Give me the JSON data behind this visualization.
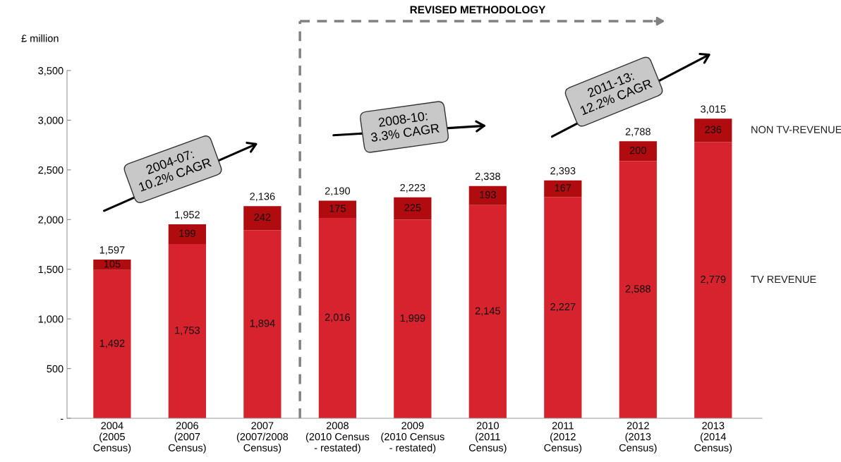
{
  "chart_data": {
    "type": "bar",
    "stacked": true,
    "ylabel": "£ million",
    "categories": [
      "2004\n(2005\nCensus)",
      "2006\n(2007\nCensus)",
      "2007\n(2007/2008\nCensus)",
      "2008\n(2010 Census\n- restated)",
      "2009\n(2010 Census\n- restated)",
      "2010\n(2011\nCensus)",
      "2011\n(2012\nCensus)",
      "2012\n(2013\nCensus)",
      "2013\n(2014\nCensus)"
    ],
    "series": [
      {
        "name": "TV REVENUE",
        "color": "#d7232e",
        "values": [
          1492,
          1753,
          1894,
          2016,
          1999,
          2145,
          2227,
          2588,
          2779
        ],
        "value_labels": [
          "1,492",
          "1,753",
          "1,894",
          "2,016",
          "1,999",
          "2,145",
          "2,227",
          "2,588",
          "2,779"
        ]
      },
      {
        "name": "NON TV-REVENUE",
        "color": "#b00b0f",
        "values": [
          105,
          199,
          242,
          175,
          225,
          193,
          167,
          200,
          236
        ],
        "value_labels": [
          "105",
          "199",
          "242",
          "175",
          "225",
          "193",
          "167",
          "200",
          "236"
        ]
      }
    ],
    "totals": [
      "1,597",
      "1,952",
      "2,136",
      "2,190",
      "2,223",
      "2,338",
      "2,393",
      "2,788",
      "3,015"
    ],
    "ylim": [
      0,
      3500
    ],
    "yticks": [
      {
        "value": 0,
        "label": "-"
      },
      500,
      {
        "value": 1000,
        "label": "1,000"
      },
      {
        "value": 1500,
        "label": "1,500"
      },
      {
        "value": 2000,
        "label": "2,000"
      },
      {
        "value": 2500,
        "label": "2,500"
      },
      {
        "value": 3000,
        "label": "3,000"
      },
      {
        "value": 3500,
        "label": "3,500"
      }
    ],
    "grid": false,
    "legend": false,
    "annotations": [
      "REVISED METHODOLOGY",
      "2004-07:\n10.2% CAGR",
      "2008-10:\n3.3% CAGR",
      "2011-13:\n12.2% CAGR"
    ]
  }
}
